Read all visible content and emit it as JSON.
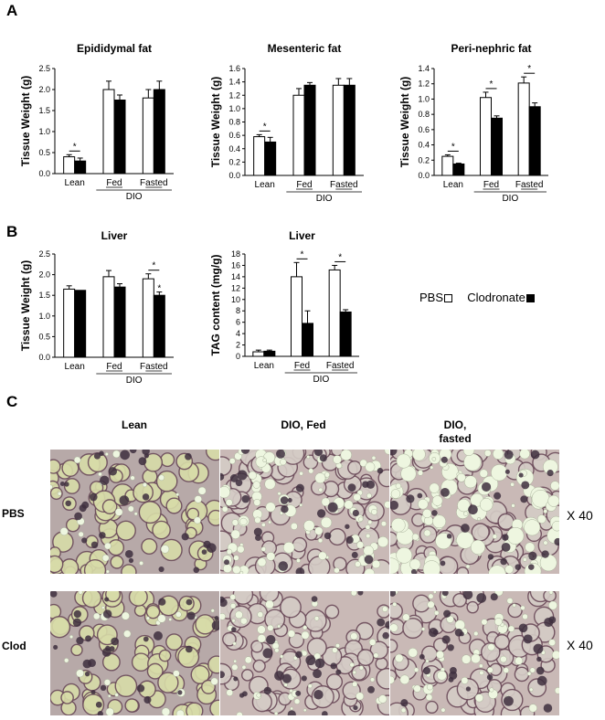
{
  "panels": {
    "a": "A",
    "b": "B",
    "c": "C"
  },
  "colors": {
    "pbs": "#ffffff",
    "clod": "#000000",
    "axis": "#000000"
  },
  "legend": {
    "pbs_label": "PBS",
    "clod_label": "Clodronate"
  },
  "histology": {
    "columns": [
      "Lean",
      "DIO, Fed",
      "DIO,\nfasted"
    ],
    "rows": [
      "PBS",
      "Clod"
    ],
    "magnification": "X 40"
  },
  "chart_data": [
    {
      "type": "bar",
      "title": "Epididymal fat",
      "ylabel": "Tissue Weight (g)",
      "ylim": [
        0,
        2.5
      ],
      "yticks": [
        "0.0",
        "0.5",
        "1.0",
        "1.5",
        "2.0",
        "2.5"
      ],
      "categories": [
        "Lean",
        "Fed",
        "Fasted"
      ],
      "group_label": "DIO",
      "series": [
        {
          "name": "PBS",
          "values": [
            0.4,
            2.0,
            1.8
          ],
          "errors": [
            0.05,
            0.2,
            0.2
          ]
        },
        {
          "name": "Clodronate",
          "values": [
            0.3,
            1.75,
            2.0
          ],
          "errors": [
            0.07,
            0.12,
            0.2
          ]
        }
      ],
      "significance": [
        true,
        false,
        false
      ]
    },
    {
      "type": "bar",
      "title": "Mesenteric fat",
      "ylabel": "Tissue Weight (g)",
      "ylim": [
        0,
        1.6
      ],
      "yticks": [
        "0.0",
        "0.2",
        "0.4",
        "0.6",
        "0.8",
        "1.0",
        "1.2",
        "1.4",
        "1.6"
      ],
      "categories": [
        "Lean",
        "Fed",
        "Fasted"
      ],
      "group_label": "DIO",
      "series": [
        {
          "name": "PBS",
          "values": [
            0.58,
            1.2,
            1.35
          ],
          "errors": [
            0.03,
            0.1,
            0.1
          ]
        },
        {
          "name": "Clodronate",
          "values": [
            0.5,
            1.35,
            1.35
          ],
          "errors": [
            0.07,
            0.04,
            0.1
          ]
        }
      ],
      "significance": [
        true,
        false,
        false
      ]
    },
    {
      "type": "bar",
      "title": "Peri-nephric fat",
      "ylabel": "Tissue Weight (g)",
      "ylim": [
        0,
        1.4
      ],
      "yticks": [
        "0.0",
        "0.2",
        "0.4",
        "0.6",
        "0.8",
        "1.0",
        "1.2",
        "1.4"
      ],
      "categories": [
        "Lean",
        "Fed",
        "Fasted"
      ],
      "group_label": "DIO",
      "series": [
        {
          "name": "PBS",
          "values": [
            0.25,
            1.02,
            1.21
          ],
          "errors": [
            0.02,
            0.07,
            0.08
          ]
        },
        {
          "name": "Clodronate",
          "values": [
            0.15,
            0.75,
            0.9
          ],
          "errors": [
            0.01,
            0.03,
            0.05
          ]
        }
      ],
      "significance": [
        true,
        true,
        true
      ]
    },
    {
      "type": "bar",
      "title": "Liver",
      "ylabel": "Tissue Weight (g)",
      "ylim": [
        0,
        2.5
      ],
      "yticks": [
        "0.0",
        "0.5",
        "1.0",
        "1.5",
        "2.0",
        "2.5"
      ],
      "categories": [
        "Lean",
        "Fed",
        "Fasted"
      ],
      "group_label": "DIO",
      "series": [
        {
          "name": "PBS",
          "values": [
            1.65,
            1.95,
            1.9
          ],
          "errors": [
            0.08,
            0.15,
            0.12
          ]
        },
        {
          "name": "Clodronate",
          "values": [
            1.62,
            1.7,
            1.5
          ],
          "errors": [
            0.0,
            0.08,
            0.08
          ]
        }
      ],
      "significance": [
        false,
        false,
        true
      ],
      "extra_star": [
        false,
        false,
        true
      ]
    },
    {
      "type": "bar",
      "title": "Liver",
      "ylabel": "TAG content (mg/g)",
      "ylim": [
        0,
        18
      ],
      "yticks": [
        "0",
        "2",
        "4",
        "6",
        "8",
        "10",
        "12",
        "14",
        "16",
        "18"
      ],
      "categories": [
        "Lean",
        "Fed",
        "Fasted"
      ],
      "group_label": "DIO",
      "series": [
        {
          "name": "PBS",
          "values": [
            0.8,
            14.0,
            15.2
          ],
          "errors": [
            0.3,
            2.5,
            0.8
          ]
        },
        {
          "name": "Clodronate",
          "values": [
            0.9,
            5.8,
            7.8
          ],
          "errors": [
            0.2,
            2.2,
            0.4
          ]
        }
      ],
      "significance": [
        false,
        true,
        true
      ]
    }
  ]
}
